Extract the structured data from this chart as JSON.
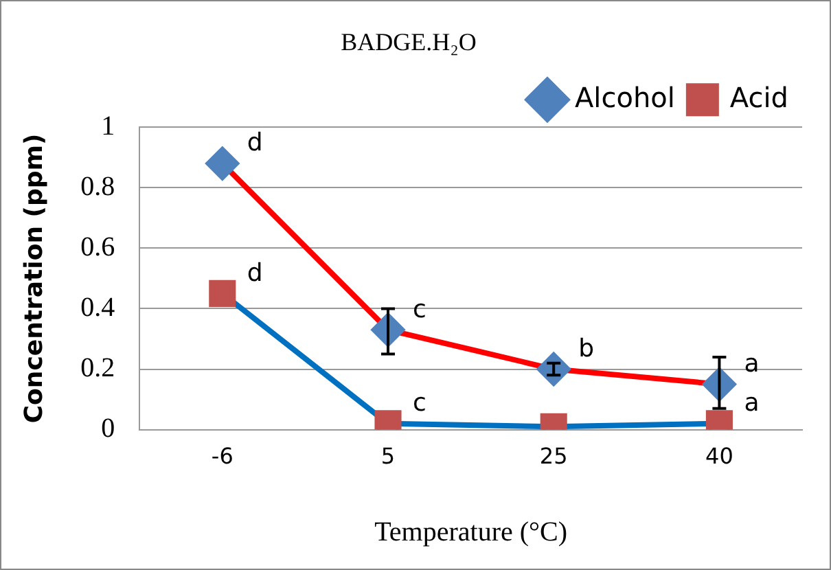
{
  "chart_data": {
    "type": "line",
    "title": "BADGE.H₂O",
    "xlabel": "Temperature (°C)",
    "ylabel": "Concentration (ppm)",
    "categories": [
      "-6",
      "5",
      "25",
      "40"
    ],
    "series": [
      {
        "name": "Alcohol",
        "color": "#ff0000",
        "colors": [
          "#4f81bd",
          "#4f81bd",
          "#4f81bd",
          "#4f81bd"
        ],
        "marker": "diamond",
        "values": [
          0.88,
          0.33,
          0.2,
          0.15
        ],
        "errors": [
          null,
          [
            0.25,
            0.4
          ],
          [
            0.18,
            0.22
          ],
          [
            0.07,
            0.24
          ]
        ]
      },
      {
        "name": "Acid",
        "color": "#0070c0",
        "colors": [
          "#c0504d",
          "#c0504d",
          "#c0504d",
          "#c0504d"
        ],
        "marker": "square",
        "values": [
          0.45,
          0.02,
          0.01,
          0.02
        ]
      }
    ],
    "ylim": [
      0,
      1
    ],
    "yticks": [
      0,
      0.2,
      0.4,
      0.6,
      0.8,
      1
    ],
    "grid": "y",
    "legend": "top right",
    "annotations": [
      {
        "text": "d",
        "x": "-6",
        "y": 0.88
      },
      {
        "text": "c",
        "x": "5",
        "y": 0.33
      },
      {
        "text": "b",
        "x": "25",
        "y": 0.2
      },
      {
        "text": "a",
        "x": "40",
        "y": 0.15
      },
      {
        "text": "d",
        "x": "-6",
        "y": 0.45
      },
      {
        "text": "c",
        "x": "5",
        "y": 0.02
      },
      {
        "text": "a",
        "x": "40",
        "y": 0.02
      }
    ]
  }
}
